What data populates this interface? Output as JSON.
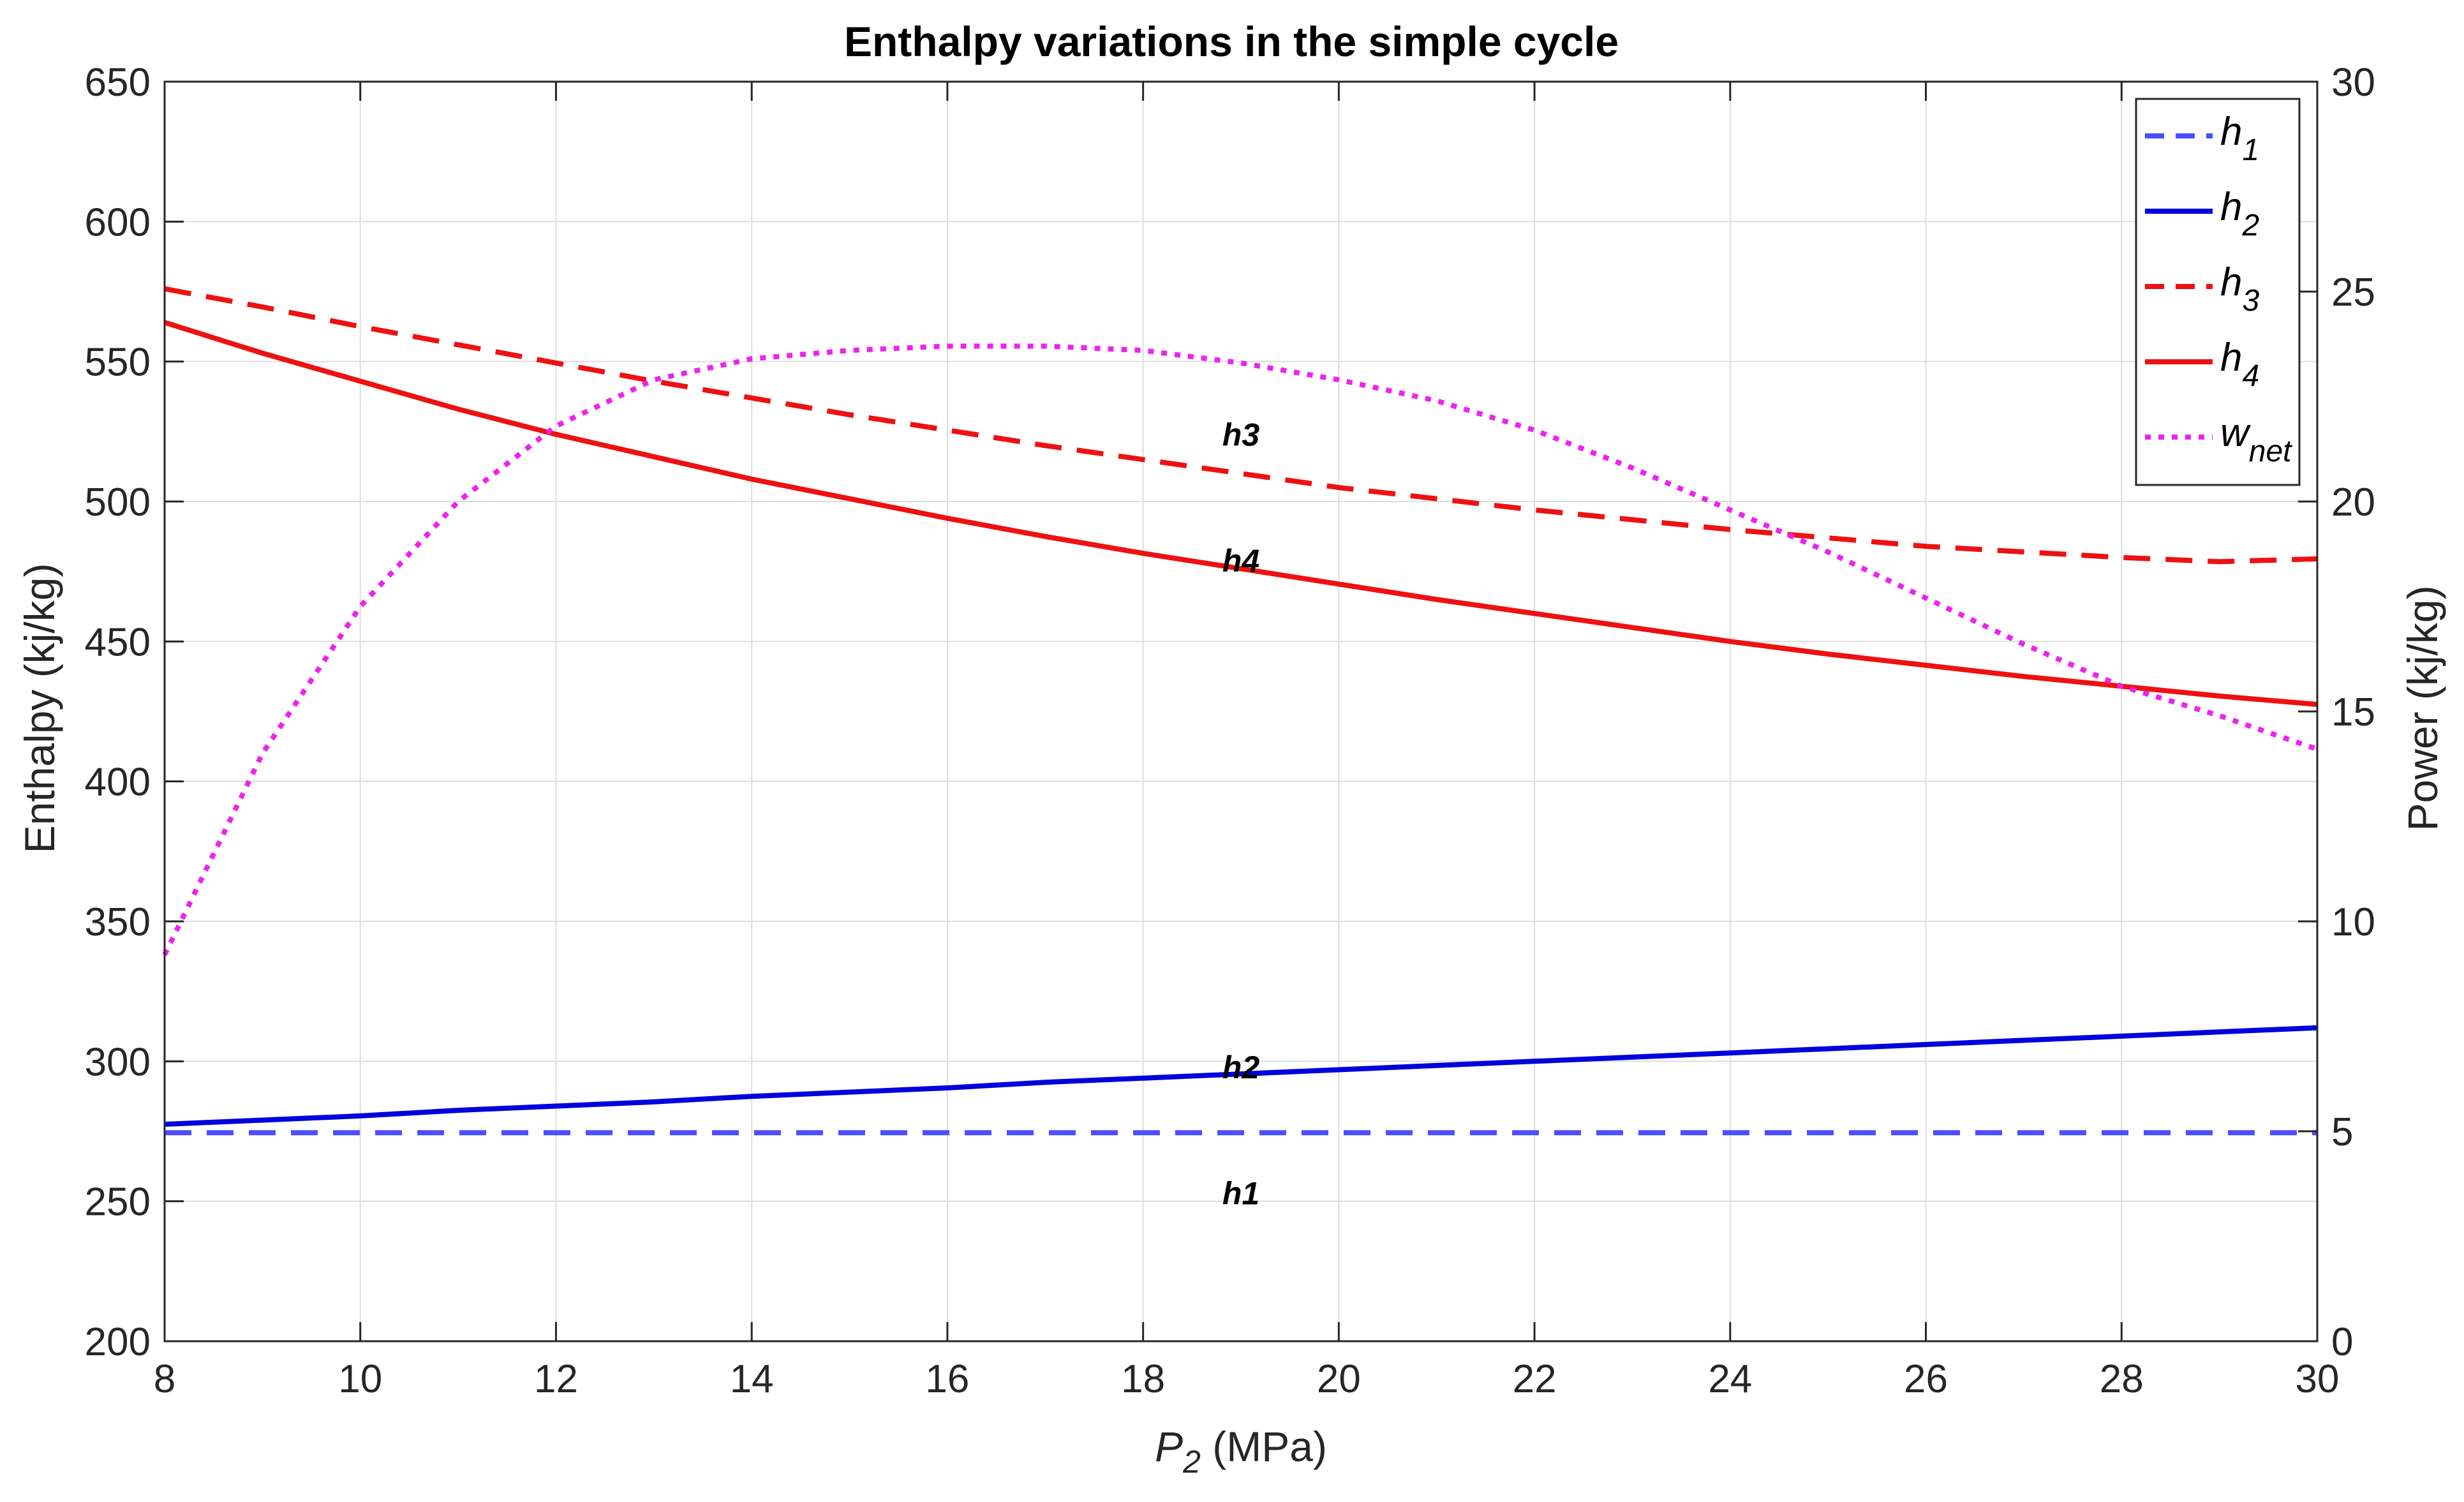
{
  "chart_data": {
    "type": "line",
    "title": "Enthalpy variations in the simple cycle",
    "xlabel": {
      "main": "P",
      "sub": "2",
      "unit": " (MPa)"
    },
    "ylabel_left": "Enthalpy (kj/kg)",
    "ylabel_right": "Power (kj/kg)",
    "xlim": [
      8,
      30
    ],
    "ylim_left": [
      200,
      650
    ],
    "ylim_right": [
      0,
      30
    ],
    "xticks": [
      8,
      10,
      12,
      14,
      16,
      18,
      20,
      22,
      24,
      26,
      28,
      30
    ],
    "yticks_left": [
      200,
      250,
      300,
      350,
      400,
      450,
      500,
      550,
      600,
      650
    ],
    "yticks_right": [
      0,
      5,
      10,
      15,
      20,
      25,
      30
    ],
    "grid": true,
    "legend_position": "top-right",
    "x": [
      8,
      9,
      10,
      11,
      12,
      13,
      14,
      15,
      16,
      17,
      18,
      19,
      20,
      21,
      22,
      23,
      24,
      25,
      26,
      27,
      28,
      29,
      30
    ],
    "series": [
      {
        "name": "h",
        "name_sub": "1",
        "axis": "left",
        "color": "#4d4dff",
        "style": "dashed",
        "values": [
          274.5,
          274.5,
          274.5,
          274.5,
          274.5,
          274.5,
          274.5,
          274.5,
          274.5,
          274.5,
          274.5,
          274.5,
          274.5,
          274.5,
          274.5,
          274.5,
          274.5,
          274.5,
          274.5,
          274.5,
          274.5,
          274.5,
          274.5
        ]
      },
      {
        "name": "h",
        "name_sub": "2",
        "axis": "left",
        "color": "#0000dd",
        "style": "solid",
        "values": [
          277.5,
          279,
          280.5,
          282.5,
          284,
          285.5,
          287.5,
          289,
          290.5,
          292.5,
          294,
          295.5,
          297,
          298.5,
          300,
          301.5,
          303,
          304.5,
          306,
          307.5,
          309,
          310.5,
          312
        ]
      },
      {
        "name": "h",
        "name_sub": "3",
        "axis": "left",
        "color": "#ee1111",
        "style": "dashed",
        "values": [
          576,
          569.5,
          562.5,
          556,
          549.5,
          543,
          537,
          531,
          525.5,
          520,
          515,
          510,
          505,
          501,
          497,
          493.5,
          490,
          487,
          484,
          482,
          480,
          478.5,
          479.5
        ]
      },
      {
        "name": "h",
        "name_sub": "4",
        "axis": "left",
        "color": "#ee1111",
        "style": "solid",
        "values": [
          564,
          553,
          543,
          533,
          524,
          516,
          508,
          501,
          494,
          487.5,
          481.5,
          476,
          470.5,
          465,
          460,
          455,
          450,
          445.5,
          441.5,
          437.5,
          434,
          430.5,
          427.5
        ]
      },
      {
        "name": "w",
        "name_sub": "net",
        "axis": "right",
        "color": "#ee22ee",
        "style": "dotted",
        "values": [
          9.2,
          14.0,
          17.5,
          20.0,
          21.8,
          22.9,
          23.4,
          23.6,
          23.7,
          23.7,
          23.6,
          23.3,
          22.9,
          22.4,
          21.7,
          20.8,
          19.8,
          18.8,
          17.7,
          16.6,
          15.6,
          14.9,
          14.1
        ]
      }
    ],
    "annotations": [
      {
        "text": "h1",
        "x": 19,
        "y": 253,
        "axis": "left"
      },
      {
        "text": "h2",
        "x": 19,
        "y": 298,
        "axis": "left"
      },
      {
        "text": "h3",
        "x": 19,
        "y": 524,
        "axis": "left"
      },
      {
        "text": "h4",
        "x": 19,
        "y": 479,
        "axis": "left"
      }
    ]
  }
}
